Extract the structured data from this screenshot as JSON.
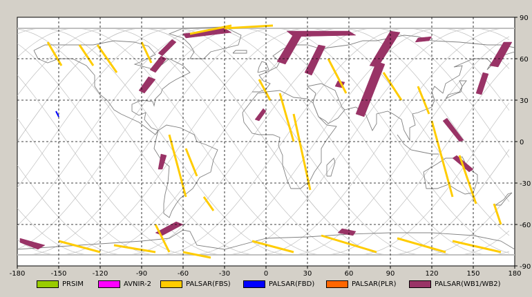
{
  "map": {
    "x_ticks": [
      "-180",
      "-150",
      "-120",
      "-90",
      "-60",
      "-30",
      "0",
      "30",
      "60",
      "90",
      "120",
      "150",
      "180"
    ],
    "y_ticks": [
      "90",
      "60",
      "30",
      "0",
      "-30",
      "-60",
      "-90"
    ],
    "colors": {
      "background": "#ffffff",
      "coast": "#808080",
      "orbit": "#c0c0c0",
      "grid": "#000000"
    }
  },
  "legend": [
    {
      "label": "PRSIM",
      "color": "#99cc00"
    },
    {
      "label": "AVNIR-2",
      "color": "#ff00ff"
    },
    {
      "label": "PALSAR(FBS)",
      "color": "#ffcc00"
    },
    {
      "label": "PALSAR(FBD)",
      "color": "#0000ff"
    },
    {
      "label": "PALSAR(PLR)",
      "color": "#ff6600"
    },
    {
      "label": "PALSAR(WB1/WB2)",
      "color": "#993366"
    }
  ],
  "chart_data": {
    "type": "map",
    "xlim": [
      -180,
      180
    ],
    "ylim": [
      -90,
      90
    ],
    "grid": true,
    "swaths_wb": [
      [
        [
          -60,
          78
        ],
        [
          -30,
          82
        ],
        [
          -25,
          79
        ],
        [
          -58,
          75
        ]
      ],
      [
        [
          -75,
          62
        ],
        [
          -65,
          72
        ],
        [
          -68,
          74
        ],
        [
          -78,
          64
        ]
      ],
      [
        [
          -80,
          50
        ],
        [
          -72,
          60
        ],
        [
          -76,
          62
        ],
        [
          -84,
          52
        ]
      ],
      [
        [
          -88,
          35
        ],
        [
          -80,
          45
        ],
        [
          -85,
          47
        ],
        [
          -92,
          37
        ]
      ],
      [
        [
          -75,
          -20
        ],
        [
          -72,
          -10
        ],
        [
          -76,
          -9
        ],
        [
          -78,
          -20
        ]
      ],
      [
        [
          -178,
          -70
        ],
        [
          -160,
          -75
        ],
        [
          -165,
          -78
        ],
        [
          -178,
          -73
        ]
      ],
      [
        [
          -75,
          -68
        ],
        [
          -60,
          -60
        ],
        [
          -65,
          -58
        ],
        [
          -80,
          -66
        ]
      ],
      [
        [
          15,
          80
        ],
        [
          60,
          80
        ],
        [
          65,
          77
        ],
        [
          20,
          76
        ]
      ],
      [
        [
          8,
          58
        ],
        [
          20,
          78
        ],
        [
          26,
          77
        ],
        [
          14,
          56
        ]
      ],
      [
        [
          28,
          50
        ],
        [
          38,
          70
        ],
        [
          43,
          69
        ],
        [
          33,
          48
        ]
      ],
      [
        [
          75,
          55
        ],
        [
          90,
          80
        ],
        [
          97,
          79
        ],
        [
          81,
          54
        ]
      ],
      [
        [
          65,
          20
        ],
        [
          80,
          58
        ],
        [
          86,
          56
        ],
        [
          71,
          18
        ]
      ],
      [
        [
          50,
          40
        ],
        [
          52,
          44
        ],
        [
          57,
          43
        ],
        [
          55,
          39
        ]
      ],
      [
        [
          110,
          75
        ],
        [
          120,
          76
        ],
        [
          118,
          73
        ],
        [
          108,
          72
        ]
      ],
      [
        [
          152,
          35
        ],
        [
          157,
          50
        ],
        [
          161,
          49
        ],
        [
          156,
          34
        ]
      ],
      [
        [
          162,
          55
        ],
        [
          172,
          72
        ],
        [
          178,
          72
        ],
        [
          168,
          54
        ]
      ],
      [
        [
          128,
          15
        ],
        [
          140,
          0
        ],
        [
          143,
          1
        ],
        [
          131,
          17
        ]
      ],
      [
        [
          138,
          -10
        ],
        [
          150,
          -20
        ],
        [
          147,
          -22
        ],
        [
          135,
          -12
        ]
      ],
      [
        [
          55,
          -63
        ],
        [
          65,
          -65
        ],
        [
          63,
          -68
        ],
        [
          52,
          -66
        ]
      ],
      [
        [
          -5,
          15
        ],
        [
          0,
          22
        ],
        [
          -2,
          24
        ],
        [
          -8,
          16
        ]
      ]
    ],
    "swaths_fbs": [
      [
        [
          -158,
          72
        ],
        [
          -148,
          55
        ]
      ],
      [
        [
          -135,
          70
        ],
        [
          -125,
          55
        ]
      ],
      [
        [
          -122,
          70
        ],
        [
          -108,
          50
        ]
      ],
      [
        [
          -90,
          72
        ],
        [
          -83,
          57
        ]
      ],
      [
        [
          -70,
          5
        ],
        [
          -58,
          -40
        ]
      ],
      [
        [
          -58,
          -5
        ],
        [
          -50,
          -25
        ]
      ],
      [
        [
          -45,
          -40
        ],
        [
          -38,
          -50
        ]
      ],
      [
        [
          -5,
          45
        ],
        [
          3,
          30
        ]
      ],
      [
        [
          10,
          35
        ],
        [
          20,
          0
        ]
      ],
      [
        [
          20,
          20
        ],
        [
          32,
          -35
        ]
      ],
      [
        [
          45,
          60
        ],
        [
          58,
          35
        ]
      ],
      [
        [
          85,
          50
        ],
        [
          98,
          30
        ]
      ],
      [
        [
          110,
          40
        ],
        [
          118,
          20
        ]
      ],
      [
        [
          120,
          15
        ],
        [
          135,
          -40
        ]
      ],
      [
        [
          140,
          -10
        ],
        [
          152,
          -45
        ]
      ],
      [
        [
          165,
          -45
        ],
        [
          170,
          -60
        ]
      ],
      [
        [
          -150,
          -72
        ],
        [
          -120,
          -80
        ]
      ],
      [
        [
          -110,
          -75
        ],
        [
          -80,
          -80
        ]
      ],
      [
        [
          -10,
          -72
        ],
        [
          20,
          -80
        ]
      ],
      [
        [
          40,
          -68
        ],
        [
          80,
          -80
        ]
      ],
      [
        [
          95,
          -70
        ],
        [
          130,
          -80
        ]
      ],
      [
        [
          135,
          -72
        ],
        [
          170,
          -80
        ]
      ],
      [
        [
          -55,
          78
        ],
        [
          -25,
          84
        ]
      ],
      [
        [
          -30,
          82
        ],
        [
          5,
          84
        ]
      ],
      [
        [
          -80,
          -60
        ],
        [
          -70,
          -80
        ]
      ],
      [
        [
          -60,
          -80
        ],
        [
          -40,
          -84
        ]
      ]
    ],
    "swaths_fbd": [
      [
        [
          -152,
          22
        ],
        [
          -150,
          18
        ]
      ]
    ]
  }
}
